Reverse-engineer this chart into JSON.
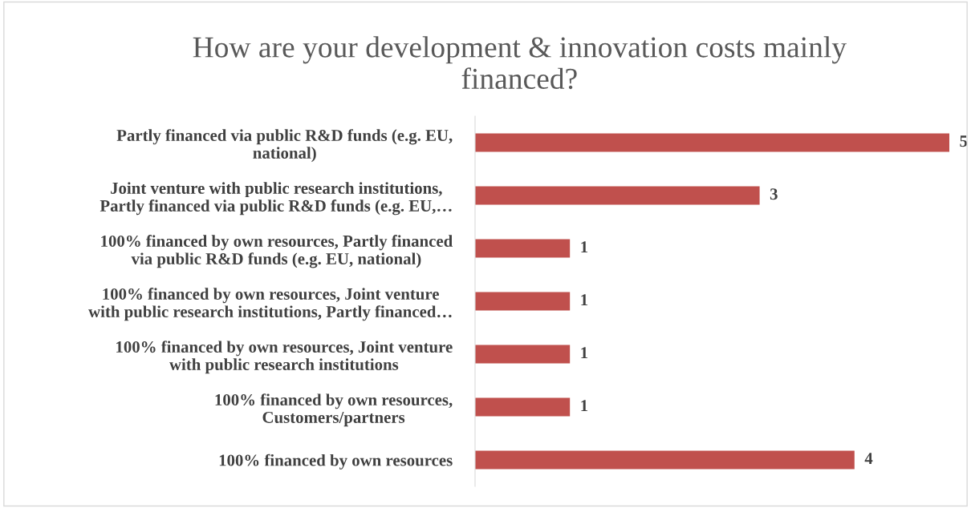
{
  "chart_data": {
    "type": "bar",
    "orientation": "horizontal",
    "title": "How are your development & innovation costs mainly\nfinanced?",
    "categories": [
      "Partly financed via public R&D funds (e.g. EU,\nnational)",
      "Joint venture with public research institutions,\nPartly financed via public R&D funds (e.g. EU,…",
      "100% financed by own resources, Partly financed\nvia public R&D funds (e.g. EU, national)",
      "100% financed by own resources, Joint venture\nwith public research institutions, Partly financed…",
      "100% financed by own resources, Joint venture\nwith public research institutions",
      "100% financed by own resources,\nCustomers/partners",
      "100% financed by own resources"
    ],
    "values": [
      5,
      3,
      1,
      1,
      1,
      1,
      4
    ],
    "color": "#c0504d",
    "data_labels": true,
    "grid": false,
    "legend": false
  }
}
